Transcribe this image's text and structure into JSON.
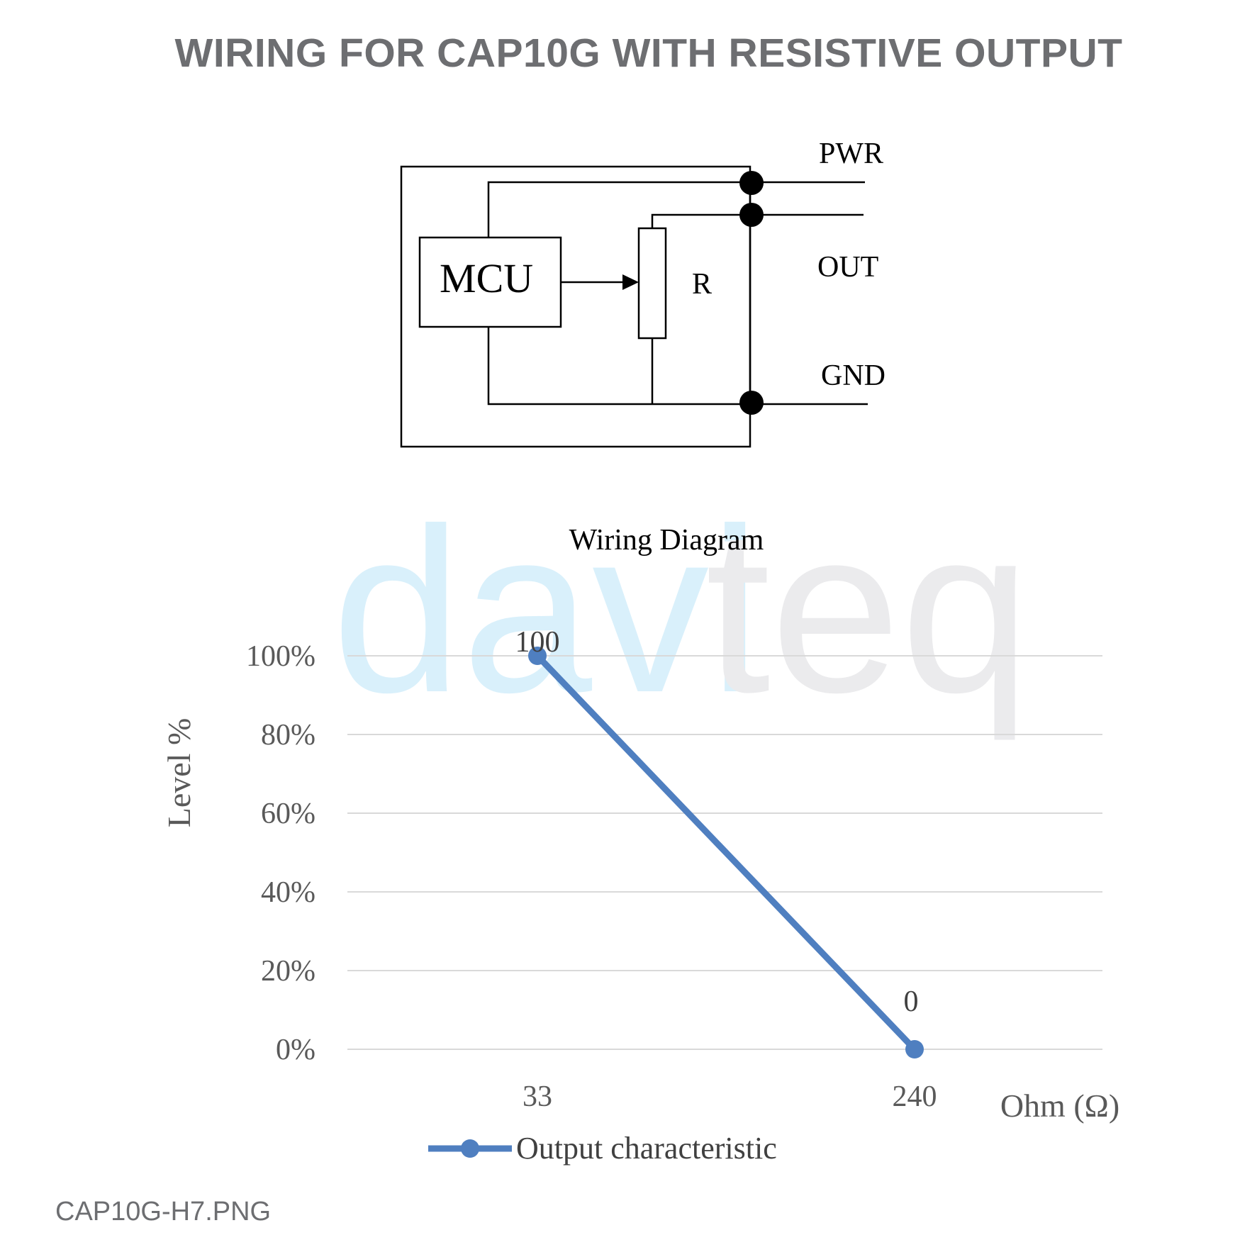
{
  "header": {
    "title": "WIRING FOR CAP10G WITH RESISTIVE OUTPUT"
  },
  "footer": {
    "filename": "CAP10G-H7.PNG"
  },
  "watermark": {
    "text_a": "davi",
    "text_b": "teq",
    "color_a": "#d9f0fb",
    "color_b": "#ebebed"
  },
  "diagram": {
    "mcu_label": "MCU",
    "resistor_label": "R",
    "terminals": {
      "pwr": "PWR",
      "out": "OUT",
      "gnd": "GND"
    },
    "caption": "Wiring Diagram"
  },
  "chart_data": {
    "type": "line",
    "ylabel": "Level %",
    "xlabel": "Ohm (Ω)",
    "y_ticks": [
      "100%",
      "80%",
      "60%",
      "40%",
      "20%",
      "0%"
    ],
    "ylim": [
      0,
      100
    ],
    "categories": [
      "33",
      "240"
    ],
    "series": [
      {
        "name": "Output characteristic",
        "values": [
          100,
          0
        ],
        "labels": [
          "100",
          "0"
        ],
        "color": "#4f7fc0"
      }
    ],
    "grid": true,
    "legend": "bottom"
  }
}
